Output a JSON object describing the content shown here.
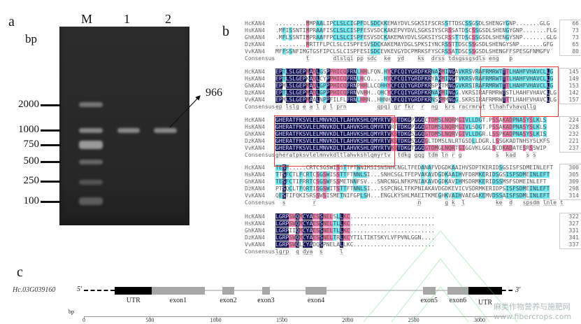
{
  "panel_a": {
    "label": "a",
    "unit": "bp",
    "lanes": [
      "M",
      "1",
      "2"
    ],
    "markers": [
      "2000",
      "1000",
      "750",
      "500",
      "250",
      "100"
    ],
    "product_size": "966"
  },
  "panel_b": {
    "label": "b",
    "consensus_label": "Consensus",
    "names": [
      "HcKAN4",
      "HsKAN4",
      "GhKAN4",
      "DzKAN4",
      "VvKAN4"
    ],
    "blocks": [
      {
        "seqs": [
          ".........MMPAALIPCLSLCIGPFDLSDCKKEMAYDVLSGKSIFSCRSSTTDSCSSGSDLSHENGYGNP.......GLG",
          ".MFISSNTIMPRAAFISCLSLCISPFESVSDCKAKEPVYDVLSGKSIYSCRSSATDSCSSGSDLSHENGYGNP.......FLG",
          ".MFLSSNTIMPRAAFFPCLSLCISPFESVSDCKAKEMAYDVLSGKSIYSCRSSTTDSCSSGSDLSHENGYSNP.......GLG",
          ".........MRTTFLPCLSLCISPFESVSDCKAKEMAYDGLSPKSIYNCRSSTTDSCSSGSDLSHENGYSNP.......GFG",
          "MFFSSNFIMGTGSFIPCLSLCISPFESISDCEVKEVGYDCPMRKSFYSCRSSATDSCSSGSDLSHENGFFSPESGFNMGFV"
        ],
        "numbers": [
          "66",
          "73",
          "73",
          "65",
          "80"
        ],
        "consensus": "         t       dlslqi pp sdc  ke  yd    ks  drss tdsgssgsdls eng   p         "
      },
      {
        "seqs": [
          "EPTLSLGEPMADLGSPPHICQFRNLHHLFQN.HYCFCQIYGRDFKRNARMINGAVKRSVRAFRMRWTTTLHAHFVHAVCLLG",
          "EPTLSLGEPKADLCYPPHICQFRNLHCQ....HYCFCQIYGRDFKRYARMINGTVKRSVRAFRMRWTTTLHAHFVHAVCLLG",
          "EPMLSLGEPMADLGPPPHICQFRNPHHLLCQHHYCFCQIYGRDFKRSPRTMNGGVKRSIRAFRMRWTTTLHAHFVHAVCLLG",
          "EPTLSLGEPMADLGPPPHICQFRNVNHH..QHCYCFCQIYGRDFKRNARMINGG.VKRSIRAFRMRWTSTLHAHFVHAVCLLG",
          "EPMLSLGEPMAALNPPFILFLFRNLHHN..HHNHCFCQIYGRDFKRNSRMMNGG.SKRSIRAFRMRWTTTLHAHFVHAVCLLG"
        ],
        "numbers": [
          "145",
          "149",
          "153",
          "142",
          "157"
        ],
        "consensus": "ep lslg e a l p l prn         qpqi gr fkr  r  ng  krs racrmrwt tlhahfvhavqllg"
      },
      {
        "seqs": [
          "GHERATFKSVLELMNVKDLTLAHVKSHLQMYRTVKSTDKGPGGQCTDMSLNQRMGIVLLDGT.PSSAKADPNASYSLKLS",
          "GHERATFKSVLELMNVKDLTLAHVKSHLQMYRTVRTTDKGPGGQGTDMSLNQRMGIVLSDGT.PSSAKADPNASYSLKLS",
          "GHERATFKSVLELMNVKDLTLAHVKSHLQMYRTVKSTDKGSGGQGTDMSLNQRVGIVLLDGR.LSSPKADPNASYSLKIS",
          "GHERATFKSVLELMNVKDLTLAHVKSHLQMYRTVKSTDKGSGGQGLTDMSLNLRTGSDLLDGR.LSSGKADTNHSYSLKFS",
          "GHERATFKSVLELMNVKDLTLAHVKSHLQMYRTVKSTDKGTGGQGTDMGLNQRTGIGGVKLGGLSCDKADATESRSSWIP"
        ],
        "numbers": [
          "224",
          "228",
          "232",
          "221",
          "237"
        ],
        "consensus": "gheratpksvlelmnvkdltlahvkshlqmyrtv  tdkg gqg tdm ln r g          s  kad   s s   "
      },
      {
        "seqs": [
          "TESF.....CRTCSGSWISSTTFTNNIMSISNSNHCNGLTFEDANAFVDGDKAAIHVSDPTKERIDSGSISFSDMEINLEFT",
          "TTSFCTLFCRTCSGSWISSTTFTNNLSI...SNHCSGLTFEPVAKAVDGDKAAIHVFDRMKERIDSGSISFSDMEINLEFT",
          "TESFCTIFRRTCSGSWFSSMETNNFSV...SNRCNGLNFKPNIAKAVDGDKAVIHMSDRMKERIDSSMSFSDMEINLEFT",
          "PTSQCLTFQRTISGSWITSTTFTNNLSI...SSPCNGLTFKPNIAKAVDGDKEVICVSDRMKERIDPSISFSDMEINLEFT",
          "QESTIFQKISRSSWSISMETNIFGPLSH...ENGLKYSHLMAEITKMEGHKVAIHVAEGAKEMVDSSAISFSDMLINLEFT"
        ],
        "numbers": [
          "300",
          "305",
          "309",
          "298",
          "314"
        ],
        "consensus": "  s        r                              n       g k  l         ke  d   spsdm lnle t"
      },
      {
        "seqs": [
          "LGRPSWQMCYAESSNELSLLKC.........................",
          "LGRPSWQMCYAESSNELTLLKC.........................",
          "LGRPIIQMCYAESSNELTLLKC.........................",
          "LGRPSWQMCYAESSNELTRLKCYTILTIKTSKYLVFPVNLGGN....",
          "LGRPSWQLCYADQSPNELALLKC........................"
        ],
        "numbers": [
          "322",
          "327",
          "331",
          "341",
          "337"
        ],
        "consensus": "lgrp  q dya  s     l"
      }
    ]
  },
  "panel_c": {
    "label": "c",
    "gene_id": "Hc.03G039160",
    "five_prime": "5'",
    "three_prime": "3'",
    "axis_unit": "bp",
    "axis_ticks": [
      0,
      500,
      1000,
      1500,
      2000,
      2500,
      3000
    ],
    "features": [
      {
        "type": "utr",
        "label": "UTR",
        "start": 235,
        "end": 515
      },
      {
        "type": "exon",
        "label": "exon1",
        "start": 515,
        "end": 915
      },
      {
        "type": "exon",
        "label": "exon2",
        "start": 1050,
        "end": 1140
      },
      {
        "type": "exon",
        "label": "exon3",
        "start": 1350,
        "end": 1410
      },
      {
        "type": "exon",
        "label": "exon4",
        "start": 1680,
        "end": 1840
      },
      {
        "type": "exon",
        "label": "exon5",
        "start": 2570,
        "end": 2665
      },
      {
        "type": "exon",
        "label": "exon6",
        "start": 2755,
        "end": 2915
      },
      {
        "type": "utr",
        "label": "UTR",
        "start": 2915,
        "end": 3170
      }
    ],
    "gene_span": [
      0,
      3250
    ]
  },
  "watermark": {
    "line1": "麻类作物营养与施肥网",
    "line2": "www.fibercrops.com"
  },
  "colors": {
    "identical": "#141450",
    "high": "#f07ab4",
    "medium": "#6fe8ee",
    "box": "#e23a3a"
  }
}
